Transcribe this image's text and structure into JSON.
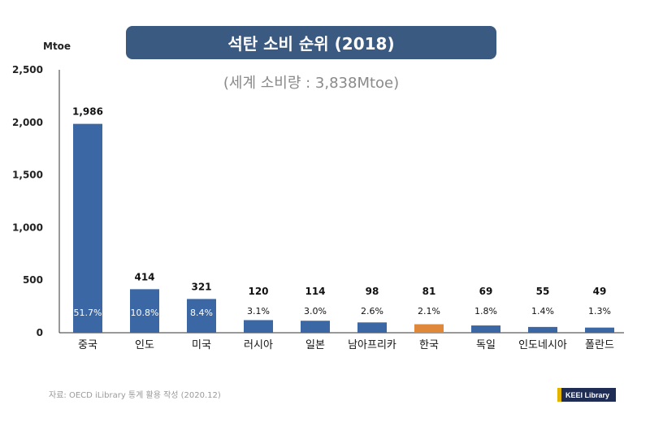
{
  "title": "석탄 소비 순위 (2018)",
  "subtitle": "(세계 소비량 : 3,838Mtoe)",
  "source": "자료: OECD iLibrary 통계 활용 작성 (2020.12)",
  "brand": "KEEI Library",
  "colors": {
    "bar": "#3c67a5",
    "highlight": "#e0883a",
    "title_bg": "#3a5a82"
  },
  "chart_data": {
    "type": "bar",
    "ylabel": "Mtoe",
    "ylim": [
      0,
      2500
    ],
    "yticks": [
      0,
      500,
      1000,
      1500,
      2000,
      2500
    ],
    "ytick_labels": [
      "0",
      "500",
      "1,000",
      "1,500",
      "2,000",
      "2,500"
    ],
    "categories": [
      "중국",
      "인도",
      "미국",
      "러시아",
      "일본",
      "남아프리카",
      "한국",
      "독일",
      "인도네시아",
      "폴란드"
    ],
    "values": [
      1986,
      414,
      321,
      120,
      114,
      98,
      81,
      69,
      55,
      49
    ],
    "value_labels": [
      "1,986",
      "414",
      "321",
      "120",
      "114",
      "98",
      "81",
      "69",
      "55",
      "49"
    ],
    "shares": [
      "51.7%",
      "10.8%",
      "8.4%",
      "3.1%",
      "3.0%",
      "2.6%",
      "2.1%",
      "1.8%",
      "1.4%",
      "1.3%"
    ],
    "highlight_category": "한국",
    "grid": false
  }
}
